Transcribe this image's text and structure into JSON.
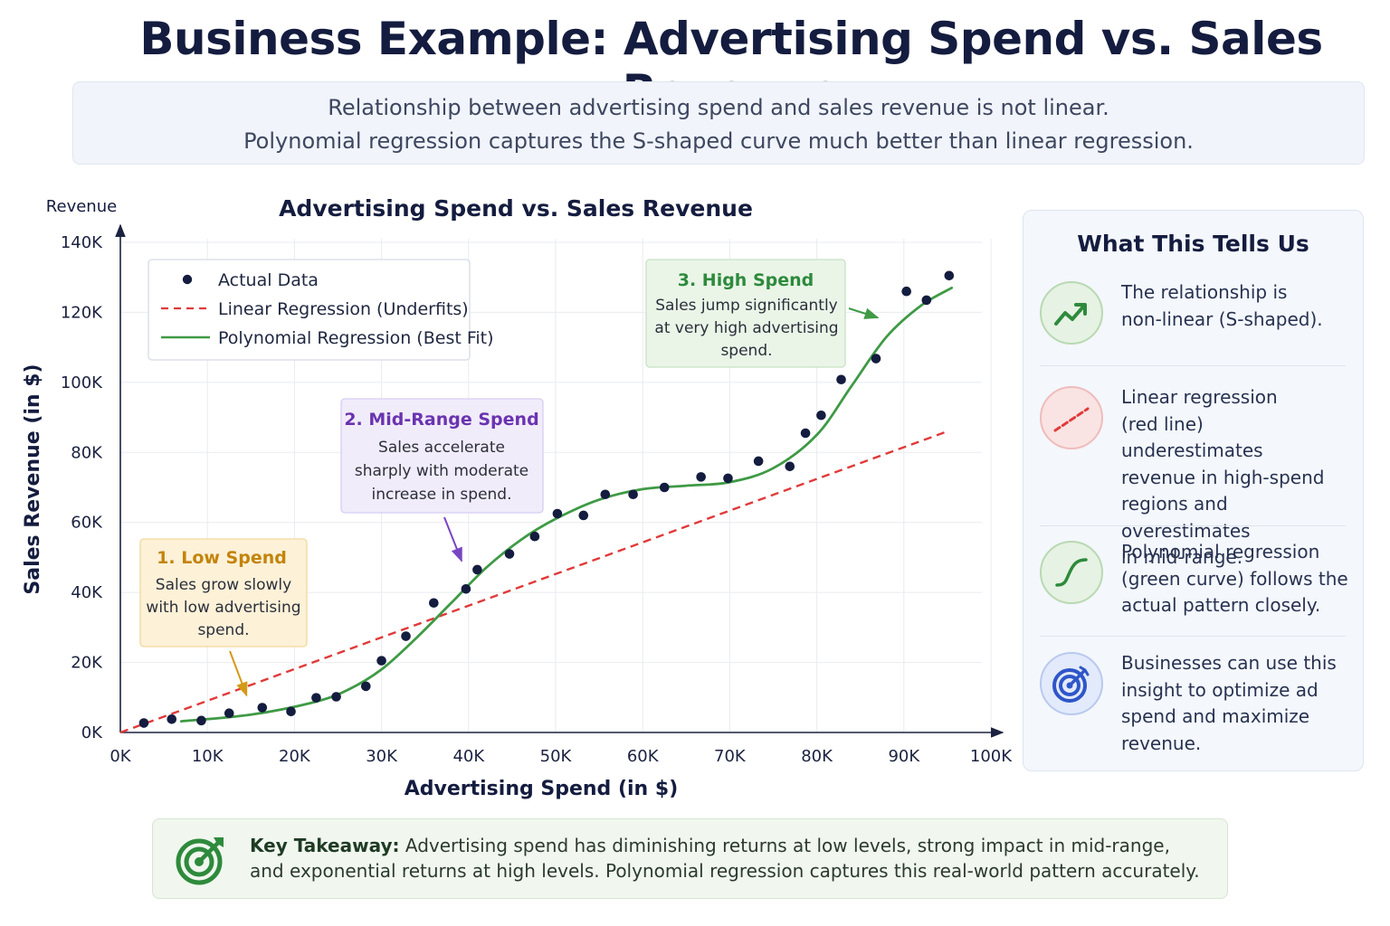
{
  "page": {
    "title": "Business Example: Advertising Spend vs. Sales Revenue",
    "subtitle_lines": [
      "Relationship between advertising spend and sales revenue is not linear.",
      "Polynomial regression captures the S-shaped curve much better than linear regression."
    ]
  },
  "chart_data": {
    "type": "scatter",
    "title": "Advertising Spend vs. Sales Revenue",
    "xlabel": "Advertising Spend (in $)",
    "ylabel": "Sales Revenue (in $)",
    "y_axis_caption": "Revenue",
    "xlim": [
      0,
      100000
    ],
    "ylim": [
      0,
      140000
    ],
    "x_ticks": [
      0,
      10000,
      20000,
      30000,
      40000,
      50000,
      60000,
      70000,
      80000,
      90000,
      100000
    ],
    "x_tick_labels": [
      "0K",
      "10K",
      "20K",
      "30K",
      "40K",
      "50K",
      "60K",
      "70K",
      "80K",
      "90K",
      "100K"
    ],
    "y_ticks": [
      0,
      20000,
      40000,
      60000,
      80000,
      100000,
      120000,
      140000
    ],
    "y_tick_labels": [
      "0K",
      "20K",
      "40K",
      "60K",
      "80K",
      "100K",
      "120K",
      "140K"
    ],
    "grid": true,
    "legend_position": "top-left",
    "series": [
      {
        "name": "Actual Data",
        "kind": "scatter",
        "color": "#141c3f",
        "x": [
          2700,
          5900,
          9300,
          12500,
          16300,
          19600,
          22500,
          24800,
          28200,
          30000,
          32800,
          36000,
          39700,
          41000,
          44700,
          47600,
          50200,
          53200,
          55700,
          58900,
          62500,
          66700,
          69800,
          73300,
          76900,
          78700,
          80500,
          82800,
          86800,
          90300,
          92600,
          95200
        ],
        "y": [
          2700,
          3800,
          3400,
          5500,
          7100,
          6000,
          9900,
          10200,
          13200,
          20500,
          27500,
          37000,
          41000,
          46500,
          51000,
          56000,
          62500,
          62000,
          68000,
          68000,
          70000,
          73000,
          72600,
          77500,
          76000,
          85500,
          90600,
          100800,
          106800,
          126000,
          123500,
          130500
        ]
      },
      {
        "name": "Linear Regression (Underfits)",
        "kind": "line",
        "style": "dashed",
        "color": "#e03a3a",
        "x": [
          0,
          95000
        ],
        "y": [
          0,
          86000
        ]
      },
      {
        "name": "Polynomial Regression (Best Fit)",
        "kind": "line",
        "style": "solid",
        "color": "#3f9a45",
        "x": [
          7000,
          15000,
          22000,
          26000,
          30000,
          34000,
          38000,
          42000,
          46000,
          50000,
          55000,
          60000,
          65000,
          70000,
          75000,
          80000,
          84000,
          88000,
          92000,
          95500
        ],
        "y": [
          3200,
          5100,
          8500,
          12000,
          18000,
          27000,
          37000,
          47000,
          55000,
          61000,
          66500,
          69500,
          70500,
          71500,
          75500,
          85000,
          99000,
          113000,
          122000,
          127000
        ]
      }
    ],
    "annotations": [
      {
        "title": "1. Low Spend",
        "text": [
          "Sales grow slowly",
          "with low advertising",
          "spend."
        ],
        "color": "#c4840b",
        "target": [
          14500,
          10600
        ]
      },
      {
        "title": "2. Mid-Range Spend",
        "text": [
          "Sales accelerate",
          "sharply with moderate",
          "increase in spend."
        ],
        "color": "#6a33b1",
        "target": [
          39200,
          49000
        ]
      },
      {
        "title": "3. High Spend",
        "text": [
          "Sales jump significantly",
          "at very high advertising",
          "spend."
        ],
        "color": "#2e8a3c",
        "target": [
          87000,
          118500
        ]
      }
    ]
  },
  "insights": {
    "title": "What This Tells Us",
    "items": [
      {
        "icon": "trend-up-icon",
        "lines": [
          "The relationship is",
          "non-linear (S-shaped)."
        ]
      },
      {
        "icon": "dashed-line-icon",
        "lines": [
          "Linear regression",
          "(red line) underestimates",
          "revenue in high-spend",
          "regions and overestimates",
          "in mid-range."
        ]
      },
      {
        "icon": "s-curve-icon",
        "lines": [
          "Polynomial regression",
          "(green curve) follows the",
          "actual pattern closely."
        ]
      },
      {
        "icon": "target-icon",
        "lines": [
          "Businesses can use this",
          "insight to optimize ad",
          "spend and maximize",
          "revenue."
        ]
      }
    ]
  },
  "takeaway": {
    "label": "Key Takeaway:",
    "line1": "Advertising spend has diminishing returns at low levels, strong impact in mid-range,",
    "line2": "and exponential returns at high levels. Polynomial regression captures this real-world pattern accurately."
  },
  "colors": {
    "title": "#141c3f",
    "linear": "#e03a3a",
    "poly": "#3f9a45",
    "points": "#141c3f",
    "low": "#c4840b",
    "mid": "#6a33b1",
    "high": "#2e8a3c"
  }
}
